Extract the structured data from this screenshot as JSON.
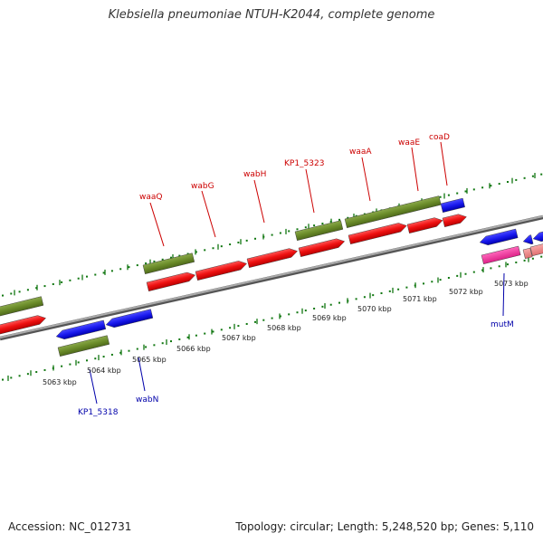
{
  "title": "Klebsiella pneumoniae NTUH-K2044, complete genome",
  "footer": {
    "accession": "Accession: NC_012731",
    "info": "Topology: circular; Length: 5,248,520 bp; Genes: 5,110"
  },
  "colors": {
    "cds_red": "#ee1111",
    "gene_green": "#6b8c2a",
    "gene_blue": "#1a1aee",
    "misc_pink": "#ee3399",
    "misc_salmon": "#f08080",
    "axis": "#888888",
    "tick_green": "#117711",
    "label_red": "#cc0000",
    "label_blue": "#0000aa"
  },
  "scale_labels": [
    "5063 kbp",
    "5064 kbp",
    "5065 kbp",
    "5066 kbp",
    "5067 kbp",
    "5068 kbp",
    "5069 kbp",
    "5070 kbp",
    "5071 kbp",
    "5072 kbp",
    "5073 kbp"
  ],
  "top_gene_labels": [
    "waaQ",
    "wabG",
    "wabH",
    "KP1_5323",
    "waaA",
    "waaE",
    "coaD"
  ],
  "bottom_gene_labels": [
    "KP1_5318",
    "wabN",
    "mutM"
  ]
}
